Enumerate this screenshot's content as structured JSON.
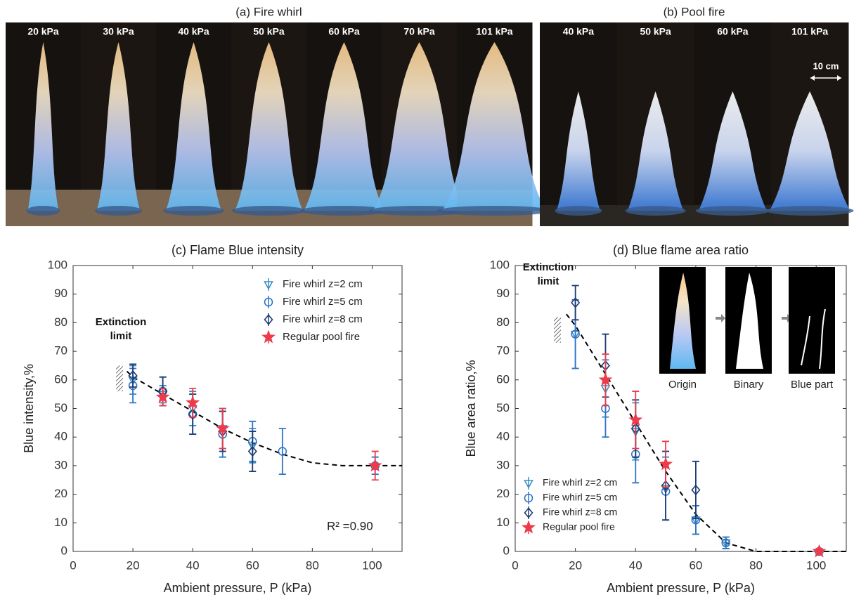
{
  "photos": {
    "panels": [
      {
        "title": "(a) Fire whirl",
        "labels": [
          "20 kPa",
          "30 kPa",
          "40 kPa",
          "50 kPa",
          "60 kPa",
          "70 kPa",
          "101 kPa"
        ]
      },
      {
        "title": "(b) Pool fire",
        "labels": [
          "40 kPa",
          "50 kPa",
          "60 kPa",
          "101 kPa"
        ],
        "scale": "10 cm"
      }
    ]
  },
  "chart_data": [
    {
      "type": "scatter",
      "title": "(c) Flame Blue intensity",
      "x_label": "Ambient pressure, P (kPa)",
      "y_label": "Blue intensity,%",
      "xlim": [
        0,
        110
      ],
      "xticks": [
        0,
        20,
        40,
        60,
        80,
        100
      ],
      "ylim": [
        0,
        100
      ],
      "yticks": [
        0,
        10,
        20,
        30,
        40,
        50,
        60,
        70,
        80,
        90,
        100
      ],
      "legend": "upper right",
      "extinction_label": "Extinction limit",
      "annotation": "R² =0.90",
      "series": [
        {
          "name": "Fire whirl z=2 cm",
          "color": "#3f8fbf",
          "marker": "triangle-down",
          "x": [
            20,
            30,
            40,
            50,
            60
          ],
          "values": [
            60,
            55,
            50,
            43,
            37
          ],
          "errors": [
            5,
            3,
            6,
            7,
            6
          ]
        },
        {
          "name": "Fire whirl z=5 cm",
          "color": "#2f74c6",
          "marker": "circle",
          "x": [
            20,
            30,
            40,
            50,
            60,
            70,
            101
          ],
          "values": [
            58,
            56,
            48,
            41,
            38.5,
            35,
            30
          ],
          "errors": [
            6,
            5,
            7,
            8,
            7,
            8,
            3
          ]
        },
        {
          "name": "Fire whirl z=8 cm",
          "color": "#1f3b73",
          "marker": "diamond",
          "x": [
            20,
            30,
            40,
            50,
            60
          ],
          "values": [
            61.5,
            56,
            48,
            42,
            35
          ],
          "errors": [
            4,
            5,
            7,
            7,
            7
          ]
        },
        {
          "name": "Regular pool fire",
          "color": "#ee3b4a",
          "marker": "star",
          "x": [
            30,
            40,
            50,
            101
          ],
          "values": [
            54,
            52,
            43,
            30
          ],
          "errors": [
            3,
            5,
            7,
            5
          ]
        }
      ],
      "fit": {
        "x": [
          18,
          20,
          30,
          40,
          50,
          60,
          70,
          80,
          90,
          100,
          110
        ],
        "values": [
          63,
          61,
          55,
          49,
          43,
          38,
          34,
          31,
          30,
          30,
          30
        ]
      }
    },
    {
      "type": "scatter",
      "title": "(d) Blue flame area ratio",
      "x_label": "Ambient pressure, P (kPa)",
      "y_label": "Blue area ratio,%",
      "xlim": [
        0,
        110
      ],
      "xticks": [
        0,
        20,
        40,
        60,
        80,
        100
      ],
      "ylim": [
        0,
        100
      ],
      "yticks": [
        0,
        10,
        20,
        30,
        40,
        50,
        60,
        70,
        80,
        90,
        100
      ],
      "legend": "lower left",
      "extinction_label": "Extinction limit",
      "inset_labels": [
        "Origin",
        "Binary",
        "Blue part"
      ],
      "series": [
        {
          "name": "Fire whirl z=2 cm",
          "color": "#3f8fbf",
          "marker": "triangle-down",
          "x": [
            20,
            30,
            40,
            50,
            60,
            70
          ],
          "values": [
            76,
            57,
            42,
            22,
            11,
            3
          ],
          "errors": [
            12,
            10,
            10,
            11,
            5,
            2
          ]
        },
        {
          "name": "Fire whirl z=5 cm",
          "color": "#2f74c6",
          "marker": "circle",
          "x": [
            20,
            30,
            40,
            50,
            60,
            70,
            101
          ],
          "values": [
            76,
            50,
            34,
            21,
            11,
            3,
            0
          ],
          "errors": [
            12,
            10,
            10,
            10,
            5,
            2,
            1
          ]
        },
        {
          "name": "Fire whirl z=8 cm",
          "color": "#1f3b73",
          "marker": "diamond",
          "x": [
            20,
            30,
            40,
            50,
            60
          ],
          "values": [
            87,
            65,
            43,
            23,
            21.5
          ],
          "errors": [
            6,
            11,
            10,
            12,
            10
          ]
        },
        {
          "name": "Regular pool fire",
          "color": "#ee3b4a",
          "marker": "star",
          "x": [
            30,
            40,
            50,
            101
          ],
          "values": [
            60,
            46,
            30.5,
            0
          ],
          "errors": [
            9,
            10,
            8,
            1
          ]
        }
      ],
      "fit": {
        "x": [
          17,
          20,
          30,
          40,
          50,
          60,
          70,
          80,
          90,
          100,
          110
        ],
        "values": [
          83,
          79,
          62,
          45,
          28,
          13,
          3,
          0,
          0,
          0,
          0
        ]
      }
    }
  ]
}
